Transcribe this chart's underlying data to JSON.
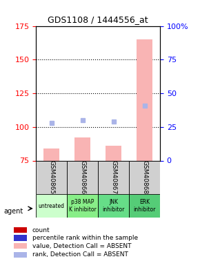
{
  "title": "GDS1108 / 1444556_at",
  "samples": [
    "GSM40865",
    "GSM40866",
    "GSM40867",
    "GSM40868"
  ],
  "agents": [
    "untreated",
    "p38 MAP\nK inhibitor",
    "JNK\ninhibitor",
    "ERK\ninhibitor"
  ],
  "ylim_left": [
    75,
    175
  ],
  "ylim_right": [
    0,
    100
  ],
  "yticks_left": [
    75,
    100,
    125,
    150,
    175
  ],
  "yticks_right": [
    0,
    25,
    50,
    75,
    100
  ],
  "ytick_right_labels": [
    "0",
    "25",
    "50",
    "75",
    "100%"
  ],
  "bar_values": [
    84,
    92,
    86,
    165
  ],
  "rank_values": [
    103,
    105,
    104,
    116
  ],
  "bar_color": "#f9b4b4",
  "bar_absent_color": "#f9b4b4",
  "rank_absent_color": "#aab4e8",
  "rank_color": "#3333cc",
  "agent_colors": [
    "#ccffcc",
    "#99ee99",
    "#66dd88",
    "#44cc66"
  ],
  "bar_width": 0.5,
  "grid_color": "#000000",
  "dotted_line_color": "#000000"
}
